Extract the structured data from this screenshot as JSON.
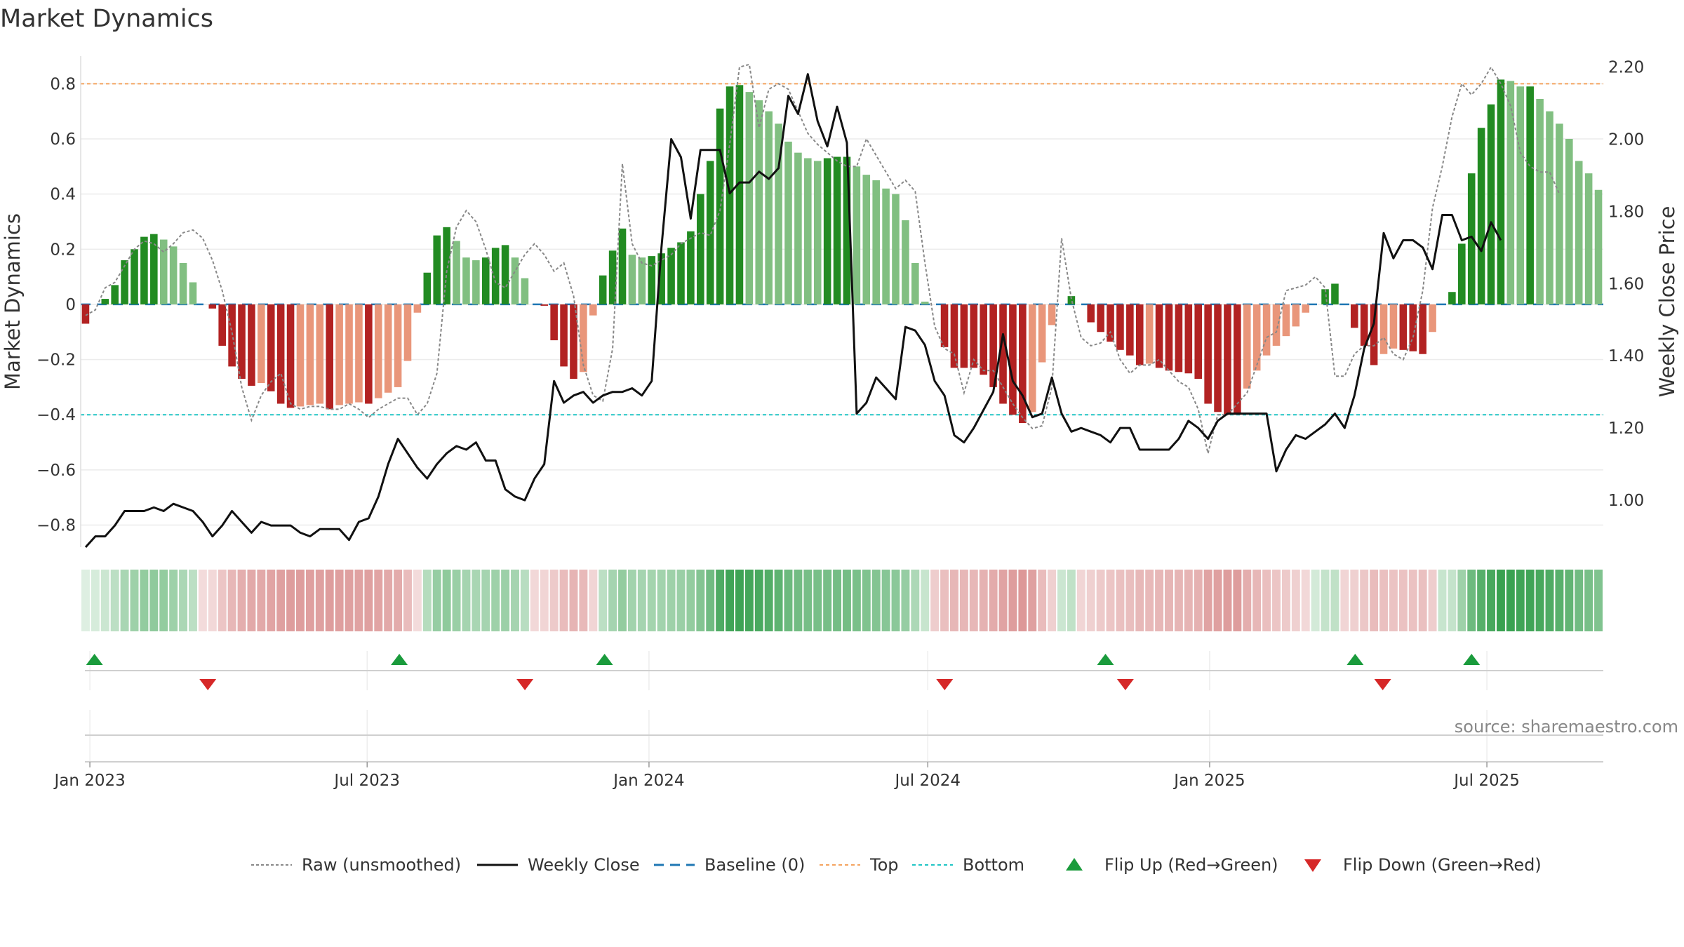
{
  "chart_data": {
    "type": "bar",
    "title": "Market Dynamics",
    "ylabel_left": "Market Dynamics",
    "ylabel_right": "Weekly Close Price",
    "ylim_left": [
      -0.88,
      0.9
    ],
    "ylim_right": [
      0.87,
      2.23
    ],
    "yticks_left": [
      0.8,
      0.6,
      0.4,
      0.2,
      0,
      -0.2,
      -0.4,
      -0.6,
      -0.8
    ],
    "yticks_left_labels": [
      "0.8",
      "0.6",
      "0.4",
      "0.2",
      "0",
      "−0.2",
      "−0.4",
      "−0.6",
      "−0.8"
    ],
    "yticks_right": [
      2.2,
      2.0,
      1.8,
      1.6,
      1.4,
      1.2,
      1.0
    ],
    "yticks_right_labels": [
      "2.20",
      "2.00",
      "1.80",
      "1.60",
      "1.40",
      "1.20",
      "1.00"
    ],
    "x_start": "2022-12-26",
    "x_end": "2025-09-15",
    "xticks": [
      "2023-01-01",
      "2023-07-01",
      "2024-01-01",
      "2024-07-01",
      "2025-01-01",
      "2025-07-01"
    ],
    "xtick_labels": [
      "Jan 2023",
      "Jul 2023",
      "Jan 2024",
      "Jul 2024",
      "Jan 2025",
      "Jul 2025"
    ],
    "top": 0.8,
    "bottom": -0.4,
    "baseline": 0,
    "grid": true,
    "legend_position": "bottom",
    "bars": [
      -0.07,
      0.0,
      0.02,
      0.07,
      0.16,
      0.2,
      0.245,
      0.255,
      0.235,
      0.21,
      0.15,
      0.08,
      0.0,
      -0.015,
      -0.15,
      -0.225,
      -0.27,
      -0.295,
      -0.285,
      -0.315,
      -0.36,
      -0.375,
      -0.37,
      -0.365,
      -0.36,
      -0.38,
      -0.365,
      -0.36,
      -0.355,
      -0.36,
      -0.34,
      -0.32,
      -0.3,
      -0.205,
      -0.03,
      0.115,
      0.25,
      0.28,
      0.23,
      0.17,
      0.16,
      0.17,
      0.205,
      0.215,
      0.17,
      0.095,
      0.0,
      -0.005,
      -0.13,
      -0.225,
      -0.27,
      -0.245,
      -0.04,
      0.105,
      0.195,
      0.275,
      0.18,
      0.17,
      0.175,
      0.185,
      0.205,
      0.225,
      0.265,
      0.4,
      0.52,
      0.71,
      0.79,
      0.795,
      0.77,
      0.74,
      0.7,
      0.655,
      0.59,
      0.55,
      0.53,
      0.52,
      0.53,
      0.535,
      0.535,
      0.5,
      0.47,
      0.45,
      0.42,
      0.4,
      0.305,
      0.15,
      0.01,
      0.0,
      -0.155,
      -0.23,
      -0.23,
      -0.23,
      -0.255,
      -0.3,
      -0.36,
      -0.4,
      -0.43,
      -0.39,
      -0.21,
      -0.075,
      0.0,
      0.03,
      0.0,
      -0.065,
      -0.1,
      -0.135,
      -0.165,
      -0.185,
      -0.22,
      -0.215,
      -0.23,
      -0.24,
      -0.245,
      -0.25,
      -0.27,
      -0.36,
      -0.39,
      -0.4,
      -0.4,
      -0.305,
      -0.24,
      -0.185,
      -0.15,
      -0.115,
      -0.08,
      -0.03,
      0.0,
      0.055,
      0.075,
      0.0,
      -0.085,
      -0.15,
      -0.22,
      -0.18,
      -0.16,
      -0.165,
      -0.17,
      -0.18,
      -0.1,
      0.0,
      0.045,
      0.22,
      0.475,
      0.64,
      0.725,
      0.815,
      0.81,
      0.79,
      0.79,
      0.745,
      0.7,
      0.655,
      0.6,
      0.52,
      0.475,
      0.415
    ],
    "raw": [
      -0.04,
      -0.02,
      0.06,
      0.08,
      0.14,
      0.2,
      0.23,
      0.22,
      0.19,
      0.22,
      0.26,
      0.27,
      0.24,
      0.16,
      0.05,
      -0.1,
      -0.3,
      -0.42,
      -0.33,
      -0.28,
      -0.25,
      -0.36,
      -0.38,
      -0.37,
      -0.37,
      -0.38,
      -0.38,
      -0.36,
      -0.38,
      -0.41,
      -0.38,
      -0.36,
      -0.34,
      -0.34,
      -0.4,
      -0.36,
      -0.25,
      0.12,
      0.28,
      0.34,
      0.3,
      0.2,
      0.08,
      0.06,
      0.12,
      0.18,
      0.22,
      0.18,
      0.12,
      0.15,
      0.03,
      -0.22,
      -0.33,
      -0.35,
      -0.16,
      0.51,
      0.22,
      0.15,
      0.14,
      0.16,
      0.18,
      0.22,
      0.24,
      0.26,
      0.25,
      0.34,
      0.58,
      0.86,
      0.87,
      0.64,
      0.78,
      0.8,
      0.78,
      0.7,
      0.62,
      0.58,
      0.55,
      0.52,
      0.5,
      0.5,
      0.6,
      0.54,
      0.48,
      0.42,
      0.45,
      0.41,
      0.15,
      -0.08,
      -0.16,
      -0.18,
      -0.32,
      -0.2,
      -0.24,
      -0.24,
      -0.3,
      -0.36,
      -0.41,
      -0.45,
      -0.44,
      -0.3,
      0.24,
      0.02,
      -0.12,
      -0.15,
      -0.14,
      -0.1,
      -0.2,
      -0.25,
      -0.22,
      -0.22,
      -0.2,
      -0.24,
      -0.28,
      -0.3,
      -0.38,
      -0.54,
      -0.4,
      -0.4,
      -0.36,
      -0.32,
      -0.22,
      -0.12,
      -0.1,
      0.05,
      0.06,
      0.07,
      0.1,
      0.06,
      -0.26,
      -0.26,
      -0.18,
      -0.15,
      -0.15,
      -0.12,
      -0.18,
      -0.2,
      -0.12,
      0.05,
      0.35,
      0.5,
      0.68,
      0.8,
      0.76,
      0.8,
      0.86,
      0.8,
      0.72,
      0.55,
      0.5,
      0.48,
      0.48,
      0.4
    ],
    "close": [
      0.87,
      0.9,
      0.9,
      0.93,
      0.97,
      0.97,
      0.97,
      0.98,
      0.97,
      0.99,
      0.98,
      0.97,
      0.94,
      0.9,
      0.93,
      0.97,
      0.94,
      0.91,
      0.94,
      0.93,
      0.93,
      0.93,
      0.91,
      0.9,
      0.92,
      0.92,
      0.92,
      0.89,
      0.94,
      0.95,
      1.01,
      1.1,
      1.17,
      1.13,
      1.09,
      1.06,
      1.1,
      1.13,
      1.15,
      1.14,
      1.16,
      1.11,
      1.11,
      1.03,
      1.01,
      1.0,
      1.06,
      1.1,
      1.33,
      1.27,
      1.29,
      1.3,
      1.27,
      1.29,
      1.3,
      1.3,
      1.31,
      1.29,
      1.33,
      1.7,
      2.0,
      1.95,
      1.78,
      1.97,
      1.97,
      1.97,
      1.85,
      1.88,
      1.88,
      1.91,
      1.89,
      1.92,
      2.12,
      2.07,
      2.18,
      2.05,
      1.98,
      2.09,
      1.99,
      1.24,
      1.27,
      1.34,
      1.31,
      1.28,
      1.48,
      1.47,
      1.43,
      1.33,
      1.29,
      1.18,
      1.16,
      1.2,
      1.25,
      1.3,
      1.46,
      1.33,
      1.29,
      1.23,
      1.24,
      1.34,
      1.24,
      1.19,
      1.2,
      1.19,
      1.18,
      1.16,
      1.2,
      1.2,
      1.14,
      1.14,
      1.14,
      1.14,
      1.17,
      1.22,
      1.2,
      1.17,
      1.22,
      1.24,
      1.24,
      1.24,
      1.24,
      1.24,
      1.08,
      1.14,
      1.18,
      1.17,
      1.19,
      1.21,
      1.24,
      1.2,
      1.29,
      1.42,
      1.49,
      1.74,
      1.67,
      1.72,
      1.72,
      1.7,
      1.64,
      1.79,
      1.79,
      1.72,
      1.73,
      1.69,
      1.77,
      1.72
    ],
    "heatmap": [
      0.0,
      0.04,
      0.1,
      0.18,
      0.28,
      0.34,
      0.4,
      0.42,
      0.4,
      0.34,
      0.27,
      0.18,
      -0.08,
      -0.1,
      -0.24,
      -0.34,
      -0.4,
      -0.44,
      -0.44,
      -0.47,
      -0.5,
      -0.52,
      -0.52,
      -0.51,
      -0.5,
      -0.52,
      -0.51,
      -0.5,
      -0.49,
      -0.5,
      -0.47,
      -0.44,
      -0.42,
      -0.3,
      -0.08,
      0.22,
      0.38,
      0.42,
      0.36,
      0.3,
      0.28,
      0.3,
      0.34,
      0.35,
      0.3,
      0.2,
      -0.1,
      -0.12,
      -0.2,
      -0.3,
      -0.36,
      -0.32,
      -0.12,
      0.18,
      0.3,
      0.4,
      0.32,
      0.3,
      0.31,
      0.32,
      0.34,
      0.36,
      0.4,
      0.48,
      0.58,
      0.76,
      0.84,
      0.85,
      0.82,
      0.79,
      0.74,
      0.68,
      0.6,
      0.57,
      0.55,
      0.54,
      0.55,
      0.56,
      0.56,
      0.53,
      0.5,
      0.48,
      0.46,
      0.44,
      0.38,
      0.26,
      0.12,
      -0.18,
      -0.28,
      -0.34,
      -0.34,
      -0.34,
      -0.37,
      -0.42,
      -0.48,
      -0.52,
      -0.56,
      -0.5,
      -0.3,
      -0.16,
      0.1,
      0.16,
      -0.12,
      -0.16,
      -0.2,
      -0.24,
      -0.27,
      -0.29,
      -0.33,
      -0.32,
      -0.34,
      -0.35,
      -0.35,
      -0.36,
      -0.38,
      -0.48,
      -0.5,
      -0.52,
      -0.52,
      -0.4,
      -0.34,
      -0.28,
      -0.24,
      -0.2,
      -0.16,
      -0.1,
      0.06,
      0.14,
      0.16,
      -0.12,
      -0.16,
      -0.22,
      -0.3,
      -0.27,
      -0.25,
      -0.26,
      -0.26,
      -0.27,
      -0.18,
      0.12,
      0.14,
      0.34,
      0.6,
      0.72,
      0.8,
      0.88,
      0.87,
      0.84,
      0.84,
      0.8,
      0.76,
      0.71,
      0.66,
      0.58,
      0.54,
      0.5
    ],
    "flip_up": [
      "2023-01-04",
      "2023-07-22",
      "2023-12-03",
      "2024-10-25",
      "2025-04-06",
      "2025-06-21"
    ],
    "flip_down": [
      "2023-03-19",
      "2023-10-12",
      "2024-07-12",
      "2024-11-07",
      "2025-04-24"
    ],
    "legend": [
      {
        "label": "Raw (unsmoothed)",
        "style": "dotted-gray"
      },
      {
        "label": "Weekly Close",
        "style": "solid-black"
      },
      {
        "label": "Baseline (0)",
        "style": "dashed-blue"
      },
      {
        "label": "Top",
        "style": "dashed-orange"
      },
      {
        "label": "Bottom",
        "style": "dashed-cyan"
      },
      {
        "label": "Flip Up (Red→Green)",
        "style": "triangle-up-green"
      },
      {
        "label": "Flip Down (Green→Red)",
        "style": "triangle-down-red"
      }
    ],
    "source": "source: sharemaestro.com"
  },
  "colors": {
    "strong_green": "#228b22",
    "light_green": "#81bf81",
    "strong_red": "#b22222",
    "light_red": "#e9967a",
    "raw": "#888888",
    "close": "#111111",
    "baseline": "#1f77b4",
    "top": "#f4a460",
    "bottom": "#20c5c5",
    "flip_up": "#1a9b3c",
    "flip_down": "#d62828"
  }
}
